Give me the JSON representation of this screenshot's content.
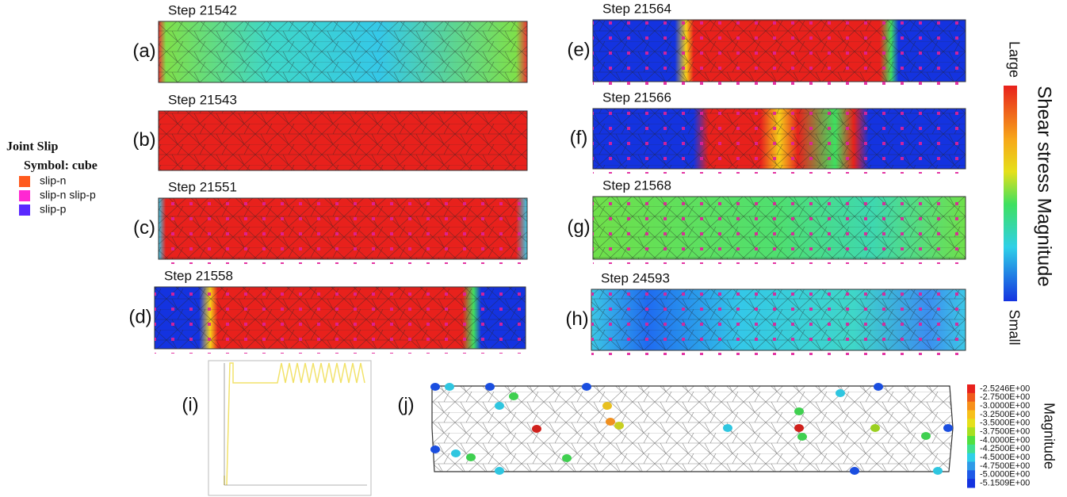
{
  "legend": {
    "title": "Joint Slip",
    "subtitle": "Symbol: cube",
    "items": [
      {
        "label": "slip-n",
        "color": "#ff5a1e"
      },
      {
        "label": "slip-n slip-p",
        "color": "#ff28d2"
      },
      {
        "label": "slip-p",
        "color": "#5a28ff"
      }
    ]
  },
  "panels": [
    {
      "label": "(a)",
      "step": "Step 21542"
    },
    {
      "label": "(b)",
      "step": "Step 21543"
    },
    {
      "label": "(c)",
      "step": "Step 21551"
    },
    {
      "label": "(d)",
      "step": "Step 21558"
    },
    {
      "label": "(e)",
      "step": "Step 21564"
    },
    {
      "label": "(f)",
      "step": "Step 21566"
    },
    {
      "label": "(g)",
      "step": "Step 21568"
    },
    {
      "label": "(h)",
      "step": "Step 24593"
    }
  ],
  "panel_i": {
    "label": "(i)"
  },
  "panel_j": {
    "label": "(j)"
  },
  "colorbar": {
    "title": "Shear stress Magnitude",
    "top": "Large",
    "bottom": "Small"
  },
  "magnitude_bar": {
    "title": "Magnitude",
    "labels": [
      "-2.5246E+00",
      "-2.7500E+00",
      "-3.0000E+00",
      "-3.2500E+00",
      "-3.5000E+00",
      "-3.7500E+00",
      "-4.0000E+00",
      "-4.2500E+00",
      "-4.5000E+00",
      "-4.7500E+00",
      "-5.0000E+00",
      "-5.1509E+00"
    ]
  }
}
